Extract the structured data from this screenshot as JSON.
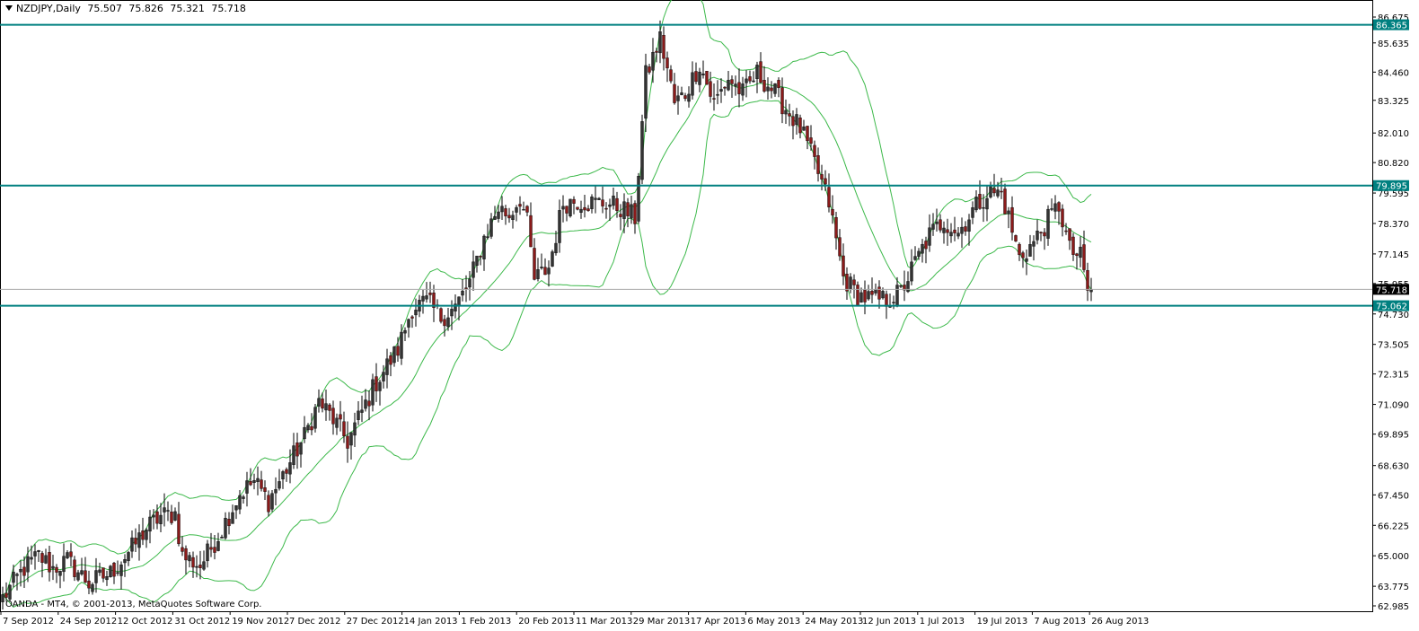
{
  "header": {
    "symbol": "NZDJPY,Daily",
    "open": "75.507",
    "high": "75.826",
    "low": "75.321",
    "close": "75.718"
  },
  "footer": {
    "watermark": "OANDA - MT4, © 2001-2013, MetaQuotes Software Corp."
  },
  "colors": {
    "background": "#ffffff",
    "axis": "#000000",
    "bull_candle": "#333333",
    "bear_candle": "#8b1a1a",
    "wick": "#000000",
    "bands": "#3cb94a",
    "hline": "#008080",
    "current_line": "#a9a9a9",
    "label_bg": "#008080",
    "label_text": "#ffffff",
    "price_label_bg": "#000000"
  },
  "chart_data": {
    "type": "candlestick",
    "title": "NZDJPY,Daily",
    "symbol": "NZDJPY",
    "timeframe": "Daily",
    "ylim": [
      62.985,
      86.675
    ],
    "y_ticks": [
      "86.675",
      "85.635",
      "84.460",
      "83.325",
      "82.010",
      "80.820",
      "79.595",
      "78.370",
      "77.145",
      "75.955",
      "74.730",
      "73.505",
      "72.315",
      "71.090",
      "69.895",
      "68.630",
      "67.450",
      "66.225",
      "65.000",
      "63.775",
      "62.985"
    ],
    "x_ticks": [
      "7 Sep 2012",
      "24 Sep 2012",
      "12 Oct 2012",
      "31 Oct 2012",
      "19 Nov 2012",
      "7 Dec 2012",
      "27 Dec 2012",
      "14 Jan 2013",
      "1 Feb 2013",
      "20 Feb 2013",
      "11 Mar 2013",
      "29 Mar 2013",
      "17 Apr 2013",
      "6 May 2013",
      "24 May 2013",
      "12 Jun 2013",
      "1 Jul 2013",
      "19 Jul 2013",
      "7 Aug 2013",
      "26 Aug 2013"
    ],
    "horizontal_lines": [
      {
        "price": 86.365,
        "label": "86.365"
      },
      {
        "price": 79.895,
        "label": "79.895"
      },
      {
        "price": 75.062,
        "label": "75.062"
      }
    ],
    "current_price": {
      "price": 75.718,
      "label": "75.718"
    },
    "indicator": "Bollinger Bands",
    "close_path": [
      [
        0,
        63.3
      ],
      [
        6,
        64.5
      ],
      [
        10,
        65.0
      ],
      [
        14,
        64.5
      ],
      [
        18,
        64.8
      ],
      [
        24,
        63.9
      ],
      [
        30,
        64.3
      ],
      [
        36,
        65.3
      ],
      [
        40,
        66.1
      ],
      [
        44,
        66.6
      ],
      [
        48,
        66.7
      ],
      [
        50,
        65.0
      ],
      [
        55,
        64.6
      ],
      [
        60,
        65.8
      ],
      [
        66,
        67.5
      ],
      [
        70,
        68.0
      ],
      [
        74,
        67.2
      ],
      [
        79,
        68.5
      ],
      [
        84,
        69.8
      ],
      [
        88,
        71.2
      ],
      [
        92,
        70.5
      ],
      [
        96,
        69.6
      ],
      [
        100,
        70.8
      ],
      [
        104,
        72.0
      ],
      [
        110,
        73.3
      ],
      [
        114,
        75.0
      ],
      [
        118,
        75.2
      ],
      [
        122,
        74.6
      ],
      [
        126,
        75.0
      ],
      [
        130,
        76.0
      ],
      [
        134,
        77.8
      ],
      [
        138,
        79.0
      ],
      [
        141,
        78.7
      ],
      [
        144,
        79.4
      ],
      [
        146,
        78.4
      ],
      [
        148,
        76.1
      ],
      [
        152,
        76.6
      ],
      [
        156,
        79.2
      ],
      [
        160,
        79.3
      ],
      [
        164,
        79.2
      ],
      [
        168,
        79.2
      ],
      [
        172,
        79.0
      ],
      [
        176,
        78.6
      ],
      [
        179,
        84.3
      ],
      [
        183,
        85.8
      ],
      [
        185,
        84.6
      ],
      [
        187,
        83.2
      ],
      [
        190,
        83.6
      ],
      [
        194,
        84.8
      ],
      [
        198,
        83.2
      ],
      [
        202,
        84.2
      ],
      [
        206,
        83.6
      ],
      [
        210,
        84.4
      ],
      [
        214,
        83.8
      ],
      [
        218,
        83.0
      ],
      [
        222,
        82.2
      ],
      [
        226,
        80.8
      ],
      [
        230,
        79.2
      ],
      [
        234,
        76.2
      ],
      [
        238,
        75.5
      ],
      [
        242,
        75.3
      ],
      [
        246,
        75.3
      ],
      [
        250,
        75.6
      ],
      [
        254,
        76.8
      ],
      [
        258,
        77.9
      ],
      [
        262,
        78.5
      ],
      [
        266,
        78.0
      ],
      [
        270,
        78.9
      ],
      [
        274,
        79.6
      ],
      [
        278,
        79.6
      ],
      [
        280,
        78.6
      ],
      [
        283,
        77.0
      ],
      [
        287,
        77.6
      ],
      [
        291,
        78.5
      ],
      [
        294,
        79.1
      ],
      [
        297,
        77.3
      ],
      [
        300,
        77.0
      ],
      [
        302,
        75.7
      ]
    ]
  }
}
